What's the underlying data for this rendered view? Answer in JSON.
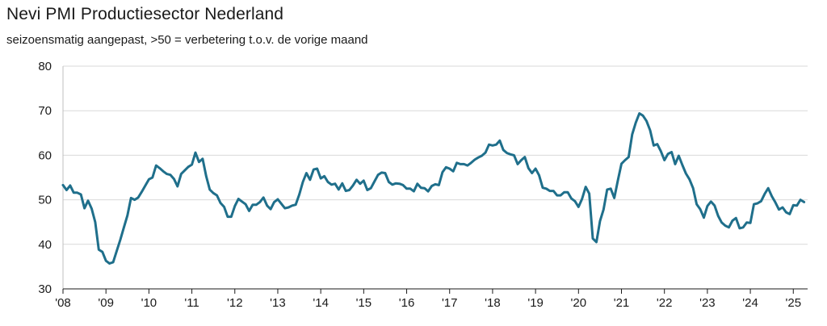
{
  "chart_data": {
    "type": "line",
    "title": "Nevi PMI Productiesector Nederland",
    "subtitle": "seizoensmatig aangepast, >50 = verbetering t.o.v. de vorige maand",
    "xlabel": "",
    "ylabel": "",
    "ylim": [
      30,
      80
    ],
    "yticks": [
      30,
      40,
      50,
      60,
      70,
      80
    ],
    "xlim": [
      "2008-01",
      "2025-05"
    ],
    "xtick_labels": [
      "'08",
      "'09",
      "'10",
      "'11",
      "'12",
      "'13",
      "'14",
      "'15",
      "'16",
      "'17",
      "'18",
      "'19",
      "'20",
      "'21",
      "'22",
      "'23",
      "'24",
      "'25"
    ],
    "grid": "horizontal",
    "legend": "none",
    "line_color": "#1f6f8b",
    "series": [
      {
        "x": [
          "2008-01",
          "2008-02",
          "2008-03",
          "2008-04",
          "2008-05",
          "2008-06",
          "2008-07",
          "2008-08",
          "2008-09",
          "2008-10",
          "2008-11",
          "2008-12",
          "2009-01",
          "2009-02",
          "2009-03",
          "2009-04",
          "2009-05",
          "2009-06",
          "2009-07",
          "2009-08",
          "2009-09",
          "2009-10",
          "2009-11",
          "2009-12",
          "2010-01",
          "2010-02",
          "2010-03",
          "2010-04",
          "2010-05",
          "2010-06",
          "2010-07",
          "2010-08",
          "2010-09",
          "2010-10",
          "2010-11",
          "2010-12",
          "2011-01",
          "2011-02",
          "2011-03",
          "2011-04",
          "2011-05",
          "2011-06",
          "2011-07",
          "2011-08",
          "2011-09",
          "2011-10",
          "2011-11",
          "2011-12",
          "2012-01",
          "2012-02",
          "2012-03",
          "2012-04",
          "2012-05",
          "2012-06",
          "2012-07",
          "2012-08",
          "2012-09",
          "2012-10",
          "2012-11",
          "2012-12",
          "2013-01",
          "2013-02",
          "2013-03",
          "2013-04",
          "2013-05",
          "2013-06",
          "2013-07",
          "2013-08",
          "2013-09",
          "2013-10",
          "2013-11",
          "2013-12",
          "2014-01",
          "2014-02",
          "2014-03",
          "2014-04",
          "2014-05",
          "2014-06",
          "2014-07",
          "2014-08",
          "2014-09",
          "2014-10",
          "2014-11",
          "2014-12",
          "2015-01",
          "2015-02",
          "2015-03",
          "2015-04",
          "2015-05",
          "2015-06",
          "2015-07",
          "2015-08",
          "2015-09",
          "2015-10",
          "2015-11",
          "2015-12",
          "2016-01",
          "2016-02",
          "2016-03",
          "2016-04",
          "2016-05",
          "2016-06",
          "2016-07",
          "2016-08",
          "2016-09",
          "2016-10",
          "2016-11",
          "2016-12",
          "2017-01",
          "2017-02",
          "2017-03",
          "2017-04",
          "2017-05",
          "2017-06",
          "2017-07",
          "2017-08",
          "2017-09",
          "2017-10",
          "2017-11",
          "2017-12",
          "2018-01",
          "2018-02",
          "2018-03",
          "2018-04",
          "2018-05",
          "2018-06",
          "2018-07",
          "2018-08",
          "2018-09",
          "2018-10",
          "2018-11",
          "2018-12",
          "2019-01",
          "2019-02",
          "2019-03",
          "2019-04",
          "2019-05",
          "2019-06",
          "2019-07",
          "2019-08",
          "2019-09",
          "2019-10",
          "2019-11",
          "2019-12",
          "2020-01",
          "2020-02",
          "2020-03",
          "2020-04",
          "2020-05",
          "2020-06",
          "2020-07",
          "2020-08",
          "2020-09",
          "2020-10",
          "2020-11",
          "2020-12",
          "2021-01",
          "2021-02",
          "2021-03",
          "2021-04",
          "2021-05",
          "2021-06",
          "2021-07",
          "2021-08",
          "2021-09",
          "2021-10",
          "2021-11",
          "2021-12",
          "2022-01",
          "2022-02",
          "2022-03",
          "2022-04",
          "2022-05",
          "2022-06",
          "2022-07",
          "2022-08",
          "2022-09",
          "2022-10",
          "2022-11",
          "2022-12",
          "2023-01",
          "2023-02",
          "2023-03",
          "2023-04",
          "2023-05",
          "2023-06",
          "2023-07",
          "2023-08",
          "2023-09",
          "2023-10",
          "2023-11",
          "2023-12",
          "2024-01",
          "2024-02",
          "2024-03",
          "2024-04",
          "2024-05",
          "2024-06",
          "2024-07",
          "2024-08",
          "2024-09",
          "2024-10",
          "2024-11",
          "2024-12",
          "2025-01",
          "2025-02",
          "2025-03",
          "2025-04"
        ],
        "values": [
          53.3,
          52.2,
          53.2,
          51.6,
          51.6,
          51.2,
          48.1,
          49.8,
          48.0,
          45.0,
          38.8,
          38.3,
          36.3,
          35.7,
          36.0,
          38.5,
          41.0,
          43.8,
          46.5,
          50.4,
          50.0,
          50.5,
          51.8,
          53.2,
          54.6,
          55.0,
          57.7,
          57.1,
          56.4,
          55.8,
          55.6,
          54.7,
          53.0,
          55.8,
          56.6,
          57.4,
          57.9,
          60.6,
          58.5,
          59.2,
          55.3,
          52.3,
          51.5,
          51.0,
          49.3,
          48.4,
          46.2,
          46.2,
          48.6,
          50.2,
          49.6,
          49.0,
          47.5,
          48.9,
          48.9,
          49.5,
          50.5,
          48.7,
          47.9,
          49.5,
          50.1,
          49.1,
          48.1,
          48.3,
          48.7,
          48.9,
          51.2,
          54.0,
          56.0,
          54.5,
          56.8,
          57.0,
          54.8,
          55.3,
          54.0,
          53.4,
          53.6,
          52.3,
          53.7,
          52.0,
          52.2,
          53.2,
          54.5,
          53.6,
          54.3,
          52.2,
          52.6,
          54.1,
          55.6,
          56.1,
          56.0,
          54.0,
          53.4,
          53.7,
          53.6,
          53.3,
          52.5,
          52.5,
          51.9,
          53.6,
          52.7,
          52.6,
          51.9,
          53.1,
          53.5,
          53.3,
          56.2,
          57.3,
          57.0,
          56.4,
          58.3,
          58.0,
          58.0,
          57.7,
          58.3,
          59.0,
          59.5,
          59.9,
          60.6,
          62.4,
          62.2,
          62.4,
          63.3,
          61.2,
          60.5,
          60.2,
          60.0,
          58.0,
          58.9,
          59.6,
          57.1,
          56.0,
          57.0,
          55.5,
          52.7,
          52.5,
          52.0,
          52.0,
          51.0,
          51.0,
          51.7,
          51.7,
          50.3,
          49.7,
          48.4,
          50.2,
          52.9,
          51.4,
          41.3,
          40.5,
          45.2,
          47.8,
          52.3,
          52.5,
          50.4,
          54.4,
          58.1,
          58.9,
          59.6,
          64.7,
          67.3,
          69.4,
          68.9,
          67.7,
          65.6,
          62.2,
          62.5,
          60.9,
          58.9,
          60.3,
          60.7,
          58.0,
          59.9,
          57.8,
          55.9,
          54.6,
          52.6,
          49.0,
          47.9,
          46.0,
          48.6,
          49.6,
          48.7,
          46.4,
          44.9,
          44.2,
          43.8,
          45.3,
          45.9,
          43.6,
          43.8,
          44.9,
          44.8,
          49.0,
          49.2,
          49.7,
          51.3,
          52.6,
          50.8,
          49.4,
          47.8,
          48.3,
          47.2,
          46.8,
          48.8,
          48.7,
          50.0,
          49.5
        ]
      }
    ]
  }
}
